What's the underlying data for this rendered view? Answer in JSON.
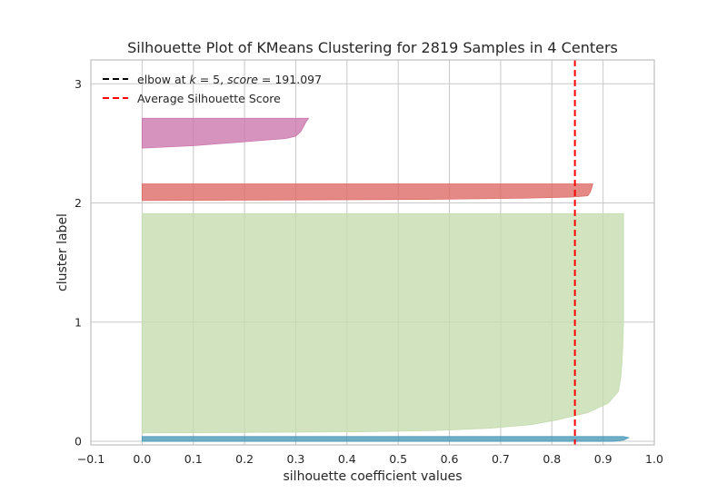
{
  "chart_data": {
    "type": "area",
    "title": "Silhouette Plot of KMeans Clustering for 2819 Samples in 4 Centers",
    "xlabel": "silhouette coefficient values",
    "ylabel": "cluster label",
    "xlim": [
      -0.1,
      1.0
    ],
    "xticks": [
      "−0.1",
      "0.0",
      "0.1",
      "0.2",
      "0.3",
      "0.4",
      "0.5",
      "0.6",
      "0.7",
      "0.8",
      "0.9",
      "1.0"
    ],
    "yticks": [
      {
        "label": "0",
        "value": 0
      },
      {
        "label": "1",
        "value": 1
      },
      {
        "label": "2",
        "value": 2
      },
      {
        "label": "3",
        "value": 3
      }
    ],
    "grid": true,
    "legend_position": "top-left",
    "average_silhouette_score": 0.845,
    "series": [
      {
        "name": "0",
        "color": "#4c9ab8",
        "values": [
          {
            "y": 0.0,
            "x": 0.92
          },
          {
            "y": 0.01,
            "x": 0.94
          },
          {
            "y": 0.03,
            "x": 0.95
          },
          {
            "y": 0.04,
            "x": 0.94
          }
        ]
      },
      {
        "name": "1",
        "color": "#c5dcaf",
        "values": [
          {
            "y": 0.07,
            "x": 0.0
          },
          {
            "y": 0.08,
            "x": 0.42
          },
          {
            "y": 0.09,
            "x": 0.57
          },
          {
            "y": 0.11,
            "x": 0.68
          },
          {
            "y": 0.14,
            "x": 0.76
          },
          {
            "y": 0.18,
            "x": 0.81
          },
          {
            "y": 0.24,
            "x": 0.87
          },
          {
            "y": 0.32,
            "x": 0.91
          },
          {
            "y": 0.42,
            "x": 0.93
          },
          {
            "y": 0.55,
            "x": 0.935
          },
          {
            "y": 0.75,
            "x": 0.938
          },
          {
            "y": 1.0,
            "x": 0.94
          },
          {
            "y": 1.3,
            "x": 0.94
          },
          {
            "y": 1.6,
            "x": 0.94
          },
          {
            "y": 1.91,
            "x": 0.94
          }
        ]
      },
      {
        "name": "2",
        "color": "#dd6b66",
        "values": [
          {
            "y": 2.02,
            "x": 0.0
          },
          {
            "y": 2.03,
            "x": 0.55
          },
          {
            "y": 2.04,
            "x": 0.75
          },
          {
            "y": 2.05,
            "x": 0.84
          },
          {
            "y": 2.06,
            "x": 0.87
          },
          {
            "y": 2.09,
            "x": 0.875
          },
          {
            "y": 2.13,
            "x": 0.878
          },
          {
            "y": 2.16,
            "x": 0.88
          }
        ]
      },
      {
        "name": "3",
        "color": "#cc78ac",
        "values": [
          {
            "y": 2.46,
            "x": 0.0
          },
          {
            "y": 2.48,
            "x": 0.1
          },
          {
            "y": 2.5,
            "x": 0.16
          },
          {
            "y": 2.52,
            "x": 0.22
          },
          {
            "y": 2.54,
            "x": 0.28
          },
          {
            "y": 2.56,
            "x": 0.3
          },
          {
            "y": 2.6,
            "x": 0.31
          },
          {
            "y": 2.64,
            "x": 0.315
          },
          {
            "y": 2.68,
            "x": 0.32
          },
          {
            "y": 2.71,
            "x": 0.325
          }
        ]
      }
    ],
    "legend": [
      {
        "text": "elbow at $k = 5$, $score = 191.097$",
        "prefix": "elbow at ",
        "k_var": "k",
        "k_eq": " = 5, ",
        "score_var": "score",
        "score_eq": " = 191.097",
        "color": "#000000",
        "style": "dashed"
      },
      {
        "text": "Average Silhouette Score",
        "color": "#ff0000",
        "style": "dashed"
      }
    ],
    "colors": {
      "plot_border": "#bfbfbf",
      "grid": "#c8c8c8",
      "text": "#262626",
      "background": "#ffffff",
      "average_line": "#ff0000"
    }
  }
}
